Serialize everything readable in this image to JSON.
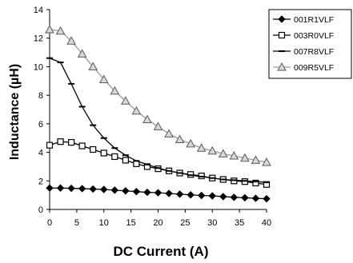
{
  "chart_data": {
    "type": "line",
    "xlabel": "DC Current (A)",
    "ylabel": "Inductance (µH)",
    "xlim": [
      0,
      40
    ],
    "ylim": [
      0,
      14
    ],
    "xticks": [
      0,
      5,
      10,
      15,
      20,
      25,
      30,
      35,
      40
    ],
    "yticks": [
      0,
      2,
      4,
      6,
      8,
      10,
      12,
      14
    ],
    "grid": false,
    "legend_position": "right",
    "series": [
      {
        "name": "001R1VLF",
        "marker": "diamond",
        "color": "#000000",
        "x": [
          0,
          2,
          4,
          6,
          8,
          10,
          12,
          14,
          16,
          18,
          20,
          22,
          24,
          26,
          28,
          30,
          32,
          34,
          36,
          38,
          40
        ],
        "y": [
          1.5,
          1.5,
          1.48,
          1.46,
          1.43,
          1.4,
          1.35,
          1.3,
          1.25,
          1.2,
          1.17,
          1.12,
          1.07,
          1.02,
          0.98,
          0.95,
          0.9,
          0.85,
          0.82,
          0.78,
          0.75
        ]
      },
      {
        "name": "003R0VLF",
        "marker": "square",
        "color": "#000000",
        "x": [
          0,
          2,
          4,
          6,
          8,
          10,
          12,
          14,
          16,
          18,
          20,
          22,
          24,
          26,
          28,
          30,
          32,
          34,
          36,
          38,
          40
        ],
        "y": [
          4.5,
          4.75,
          4.7,
          4.45,
          4.2,
          3.95,
          3.7,
          3.45,
          3.2,
          3.0,
          2.85,
          2.7,
          2.55,
          2.45,
          2.35,
          2.2,
          2.1,
          2.0,
          1.95,
          1.85,
          1.75
        ]
      },
      {
        "name": "007R8VLF",
        "marker": "dash",
        "color": "#000000",
        "x": [
          0,
          2,
          4,
          6,
          8,
          10,
          12,
          14,
          16,
          18,
          20,
          22,
          24,
          26,
          28,
          30,
          32,
          34,
          36,
          38,
          40
        ],
        "y": [
          10.6,
          10.3,
          8.8,
          7.2,
          5.9,
          5.0,
          4.3,
          3.8,
          3.4,
          3.15,
          2.9,
          2.7,
          2.55,
          2.4,
          2.3,
          2.2,
          2.1,
          2.05,
          2.0,
          1.95,
          1.9
        ]
      },
      {
        "name": "009R5VLF",
        "marker": "triangle",
        "color": "#9a9a9a",
        "x": [
          0,
          2,
          4,
          6,
          8,
          10,
          12,
          14,
          16,
          18,
          20,
          22,
          24,
          26,
          28,
          30,
          32,
          34,
          36,
          38,
          40
        ],
        "y": [
          12.6,
          12.5,
          11.8,
          10.9,
          10.0,
          9.1,
          8.3,
          7.6,
          6.9,
          6.3,
          5.8,
          5.3,
          4.9,
          4.6,
          4.3,
          4.1,
          3.9,
          3.75,
          3.6,
          3.45,
          3.3
        ]
      }
    ]
  }
}
